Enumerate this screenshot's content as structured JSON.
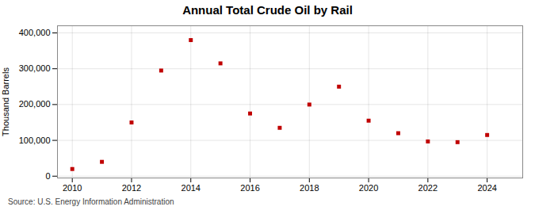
{
  "chart_data": {
    "type": "scatter",
    "title": "Annual Total Crude Oil by Rail",
    "ylabel": "Thousand Barrels",
    "source": "Source: U.S. Energy Information Administration",
    "x": [
      2010,
      2011,
      2012,
      2013,
      2014,
      2015,
      2016,
      2017,
      2018,
      2019,
      2020,
      2021,
      2022,
      2023,
      2024
    ],
    "values": [
      20000,
      40000,
      150000,
      295000,
      380000,
      315000,
      175000,
      135000,
      200000,
      250000,
      155000,
      120000,
      97000,
      95000,
      115000
    ],
    "color": "#c00000",
    "marker": "square",
    "xlim": [
      2009.5,
      2025.2
    ],
    "ylim": [
      -5000,
      420000
    ],
    "xticks": [
      2010,
      2012,
      2014,
      2016,
      2018,
      2020,
      2022,
      2024
    ],
    "yticks": [
      0,
      {
        "value": 100000,
        "label": "100,000"
      },
      {
        "value": 200000,
        "label": "200,000"
      },
      {
        "value": 300000,
        "label": "300,000"
      },
      {
        "value": 400000,
        "label": "400,000"
      }
    ],
    "grid": true
  }
}
